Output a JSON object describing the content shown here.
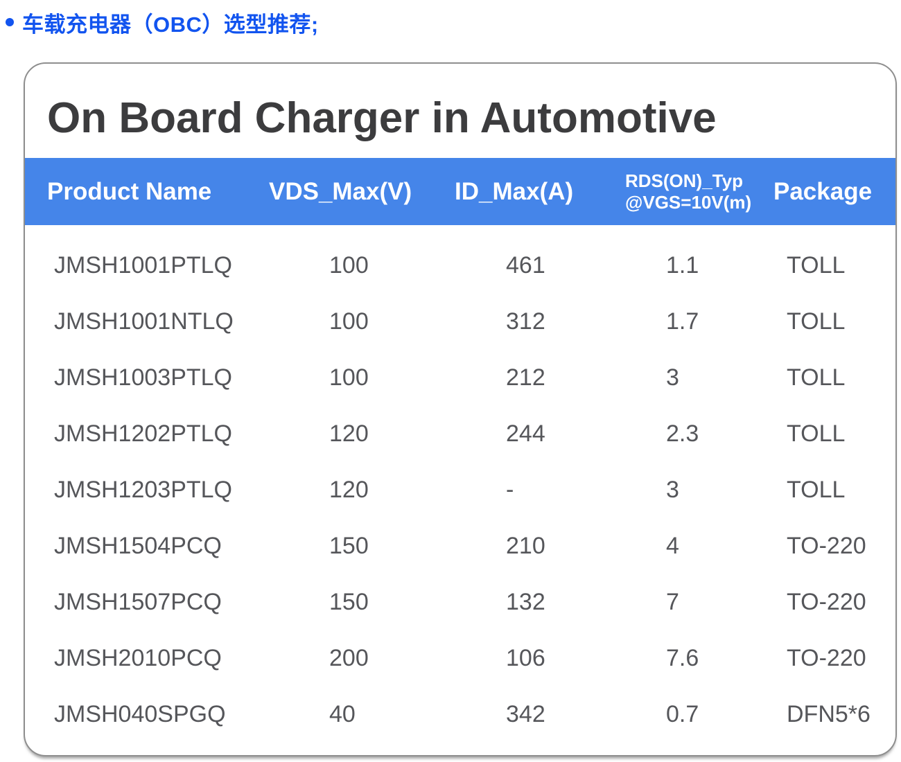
{
  "page": {
    "heading": "车载充电器（OBC）选型推荐;"
  },
  "card": {
    "title": "On Board Charger in Automotive"
  },
  "table": {
    "headers": {
      "product": "Product Name",
      "vds": "VDS_Max(V)",
      "id": "ID_Max(A)",
      "rds_line1": "RDS(ON)_Typ",
      "rds_line2": "@VGS=10V(m)",
      "package": "Package"
    },
    "rows": [
      {
        "product_name": "JMSH1001PTLQ",
        "vds_max_v": "100",
        "id_max_a": "461",
        "rds_on_typ": "1.1",
        "package": "TOLL"
      },
      {
        "product_name": "JMSH1001NTLQ",
        "vds_max_v": "100",
        "id_max_a": "312",
        "rds_on_typ": "1.7",
        "package": "TOLL"
      },
      {
        "product_name": "JMSH1003PTLQ",
        "vds_max_v": "100",
        "id_max_a": "212",
        "rds_on_typ": "3",
        "package": "TOLL"
      },
      {
        "product_name": "JMSH1202PTLQ",
        "vds_max_v": "120",
        "id_max_a": "244",
        "rds_on_typ": "2.3",
        "package": "TOLL"
      },
      {
        "product_name": "JMSH1203PTLQ",
        "vds_max_v": "120",
        "id_max_a": "-",
        "rds_on_typ": "3",
        "package": "TOLL"
      },
      {
        "product_name": "JMSH1504PCQ",
        "vds_max_v": "150",
        "id_max_a": "210",
        "rds_on_typ": "4",
        "package": "TO-220"
      },
      {
        "product_name": "JMSH1507PCQ",
        "vds_max_v": "150",
        "id_max_a": "132",
        "rds_on_typ": "7",
        "package": "TO-220"
      },
      {
        "product_name": "JMSH2010PCQ",
        "vds_max_v": "200",
        "id_max_a": "106",
        "rds_on_typ": "7.6",
        "package": "TO-220"
      },
      {
        "product_name": "JMSH040SPGQ",
        "vds_max_v": "40",
        "id_max_a": "342",
        "rds_on_typ": "0.7",
        "package": "DFN5*6"
      }
    ]
  },
  "colors": {
    "accent_blue": "#1254EF",
    "table_header_blue": "#4585E9"
  }
}
